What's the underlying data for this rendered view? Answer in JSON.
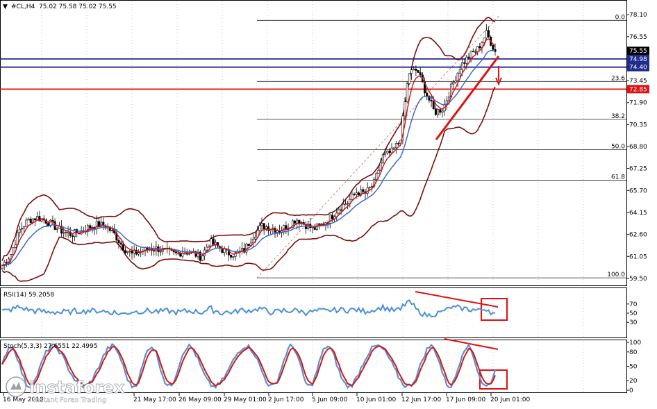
{
  "header": {
    "marker": "▼",
    "symbol_tf": "#CL,H4",
    "ohlc": "75.02 75.58 75.02 75.55"
  },
  "main_axis": {
    "ticks": [
      78.1,
      76.55,
      75.0,
      73.45,
      71.9,
      70.35,
      68.8,
      67.25,
      65.7,
      64.15,
      62.6,
      61.05,
      59.5
    ],
    "tick_labels": [
      "78.10",
      "76.55",
      "75.00",
      "73.45",
      "71.90",
      "70.35",
      "68.80",
      "67.25",
      "65.70",
      "64.15",
      "62.60",
      "61.05",
      "59.50"
    ],
    "range": [
      59.35,
      78.45
    ]
  },
  "price_tags": [
    {
      "value": 75.55,
      "label": "75.55",
      "bg": "#000000",
      "fg": "#ffffff"
    },
    {
      "value": 74.98,
      "label": "74.98",
      "bg": "#1e2a8c",
      "fg": "#ffffff"
    },
    {
      "value": 74.4,
      "label": "74.40",
      "bg": "#1e2a8c",
      "fg": "#ffffff"
    },
    {
      "value": 72.85,
      "label": "72.85",
      "bg": "#e01010",
      "fg": "#ffffff"
    }
  ],
  "fibonacci": {
    "levels": [
      {
        "label": "0.0",
        "value": 77.7
      },
      {
        "label": "23.6",
        "value": 73.39
      },
      {
        "label": "38.2",
        "value": 70.72
      },
      {
        "label": "50.0",
        "value": 68.58
      },
      {
        "label": "61.8",
        "value": 66.43
      },
      {
        "label": "100.0",
        "value": 59.54
      }
    ]
  },
  "horizontal_lines": [
    {
      "value": 74.98,
      "color": "#1e2a8c"
    },
    {
      "value": 74.4,
      "color": "#1e2a8c"
    },
    {
      "value": 72.85,
      "color": "#e01010"
    }
  ],
  "rsi": {
    "label": "RSI(14) 59.2058",
    "ticks": [
      70,
      50,
      30
    ],
    "tick_labels": [
      "70",
      "50",
      "30"
    ],
    "range": [
      0,
      100
    ]
  },
  "stoch": {
    "label": "Stoch(5,3,3) 27.6551 22.4995",
    "ticks": [
      100,
      80,
      50,
      20,
      0
    ],
    "tick_labels": [
      "100",
      "80",
      "50",
      "20",
      "0"
    ],
    "range": [
      0,
      100
    ]
  },
  "time_axis": {
    "labels": [
      "16 May 2018",
      "21 May 17:00",
      "26 May 09:00",
      "29 May 01:00",
      "2 Jun 17:00",
      "5 Jun 09:00",
      "10 Jun 01:00",
      "12 Jun 17:00",
      "17 Jun 09:00",
      "20 Jun 01:00"
    ]
  },
  "watermark": {
    "brand": "instaforex",
    "tagline": "Instant Forex Trading"
  },
  "colors": {
    "candles": "#000000",
    "bollinger": "#7a0c0c",
    "ma_fast": "#d01818",
    "ma_slow": "#3a6ac8",
    "rsi_line": "#4a8fd8",
    "stoch_main": "#5a90d0",
    "stoch_signal": "#d01818",
    "annotation": "#e01010"
  },
  "chart_data": {
    "type": "line",
    "title": "#CL,H4",
    "series": [
      {
        "values": [
          60.4,
          61.2,
          62.9,
          63.6,
          63.8,
          63.6,
          63.2,
          62.8,
          62.6,
          62.8,
          63.1,
          63.3,
          63.2,
          62.6,
          61.7,
          61.2,
          61.4,
          61.6,
          61.6,
          61.4,
          61.2,
          61.4,
          61.3,
          61.0,
          62.1,
          61.7,
          61.3,
          61.2,
          61.5,
          62.5,
          63.2,
          63.1,
          62.9,
          63.2,
          63.7,
          63.3,
          63.0,
          63.3,
          63.8,
          64.5,
          64.9,
          65.6,
          65.5,
          66.2,
          68.1,
          68.4,
          69.2,
          74.0,
          74.2,
          72.6,
          71.2,
          71.5,
          73.1,
          74.5,
          75.2,
          75.7,
          76.8,
          75.5
        ]
      }
    ]
  }
}
